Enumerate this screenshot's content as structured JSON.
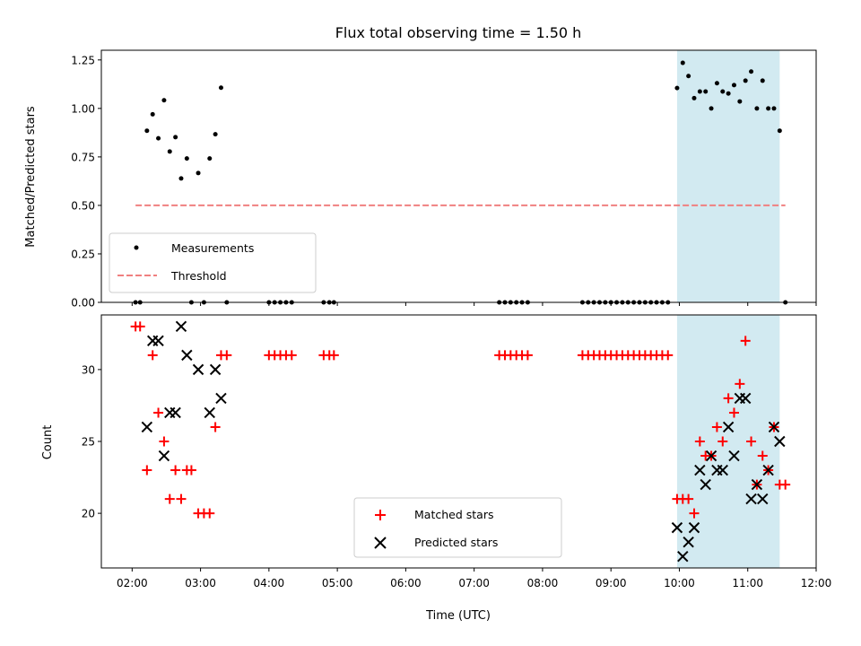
{
  "chart_data": {
    "title": "Flux total observing time = 1.50 h",
    "xlabel": "Time (UTC)",
    "x_ticks": [
      "02:00",
      "03:00",
      "04:00",
      "05:00",
      "06:00",
      "07:00",
      "08:00",
      "09:00",
      "10:00",
      "11:00",
      "12:00"
    ],
    "xlim": [
      "01:33",
      "12:00"
    ],
    "highlight_span": {
      "start": "09:58",
      "end": "11:28",
      "color": "#add8e6"
    },
    "panels": [
      {
        "type": "scatter",
        "ylabel": "Matched/Predicted stars",
        "ylim": [
          0,
          1.3
        ],
        "y_ticks": [
          "0.00",
          "0.25",
          "0.50",
          "0.75",
          "1.00",
          "1.25"
        ],
        "legend_position": "lower-left",
        "series": [
          {
            "name": "Measurements",
            "marker": "dot",
            "color": "#000000",
            "points": [
              [
                "02:03",
                0.0
              ],
              [
                "02:07",
                0.0
              ],
              [
                "02:13",
                0.885
              ],
              [
                "02:18",
                0.97
              ],
              [
                "02:23",
                0.846
              ],
              [
                "02:28",
                1.042
              ],
              [
                "02:33",
                0.778
              ],
              [
                "02:38",
                0.852
              ],
              [
                "02:43",
                0.639
              ],
              [
                "02:48",
                0.742
              ],
              [
                "02:52",
                0.0
              ],
              [
                "02:58",
                0.667
              ],
              [
                "03:03",
                0.0
              ],
              [
                "03:08",
                0.742
              ],
              [
                "03:13",
                0.867
              ],
              [
                "03:18",
                1.107
              ],
              [
                "03:23",
                0.0
              ],
              [
                "04:00",
                0.0
              ],
              [
                "04:05",
                0.0
              ],
              [
                "04:10",
                0.0
              ],
              [
                "04:15",
                0.0
              ],
              [
                "04:20",
                0.0
              ],
              [
                "04:48",
                0.0
              ],
              [
                "04:53",
                0.0
              ],
              [
                "04:57",
                0.0
              ],
              [
                "07:22",
                0.0
              ],
              [
                "07:27",
                0.0
              ],
              [
                "07:32",
                0.0
              ],
              [
                "07:37",
                0.0
              ],
              [
                "07:42",
                0.0
              ],
              [
                "07:47",
                0.0
              ],
              [
                "08:35",
                0.0
              ],
              [
                "08:40",
                0.0
              ],
              [
                "08:45",
                0.0
              ],
              [
                "08:50",
                0.0
              ],
              [
                "08:55",
                0.0
              ],
              [
                "09:00",
                0.0
              ],
              [
                "09:05",
                0.0
              ],
              [
                "09:10",
                0.0
              ],
              [
                "09:15",
                0.0
              ],
              [
                "09:20",
                0.0
              ],
              [
                "09:25",
                0.0
              ],
              [
                "09:30",
                0.0
              ],
              [
                "09:35",
                0.0
              ],
              [
                "09:40",
                0.0
              ],
              [
                "09:45",
                0.0
              ],
              [
                "09:50",
                0.0
              ],
              [
                "09:58",
                1.105
              ],
              [
                "10:03",
                1.235
              ],
              [
                "10:08",
                1.167
              ],
              [
                "10:13",
                1.053
              ],
              [
                "10:18",
                1.087
              ],
              [
                "10:23",
                1.087
              ],
              [
                "10:28",
                1.0
              ],
              [
                "10:33",
                1.13
              ],
              [
                "10:38",
                1.087
              ],
              [
                "10:43",
                1.077
              ],
              [
                "10:48",
                1.12
              ],
              [
                "10:53",
                1.036
              ],
              [
                "10:58",
                1.143
              ],
              [
                "11:03",
                1.19
              ],
              [
                "11:08",
                1.0
              ],
              [
                "11:13",
                1.143
              ],
              [
                "11:18",
                1.0
              ],
              [
                "11:23",
                1.0
              ],
              [
                "11:28",
                0.885
              ],
              [
                "11:33",
                0.0
              ]
            ]
          },
          {
            "name": "Threshold",
            "marker": "dashed-line",
            "color": "#f08080",
            "points": [
              [
                "02:03",
                0.5
              ],
              [
                "11:33",
                0.5
              ]
            ]
          }
        ]
      },
      {
        "type": "scatter",
        "ylabel": "Count",
        "ylim": [
          16.2,
          33.8
        ],
        "y_ticks": [
          "20",
          "25",
          "30"
        ],
        "legend_position": "lower-center",
        "series": [
          {
            "name": "Matched stars",
            "marker": "plus",
            "color": "#ff0000",
            "points": [
              [
                "02:03",
                33
              ],
              [
                "02:07",
                33
              ],
              [
                "02:13",
                23
              ],
              [
                "02:18",
                31
              ],
              [
                "02:23",
                27
              ],
              [
                "02:28",
                25
              ],
              [
                "02:33",
                21
              ],
              [
                "02:38",
                23
              ],
              [
                "02:43",
                21
              ],
              [
                "02:48",
                23
              ],
              [
                "02:52",
                23
              ],
              [
                "02:58",
                20
              ],
              [
                "03:03",
                20
              ],
              [
                "03:08",
                20
              ],
              [
                "03:13",
                26
              ],
              [
                "03:18",
                31
              ],
              [
                "03:23",
                31
              ],
              [
                "04:00",
                31
              ],
              [
                "04:05",
                31
              ],
              [
                "04:10",
                31
              ],
              [
                "04:15",
                31
              ],
              [
                "04:20",
                31
              ],
              [
                "04:48",
                31
              ],
              [
                "04:53",
                31
              ],
              [
                "04:57",
                31
              ],
              [
                "07:22",
                31
              ],
              [
                "07:27",
                31
              ],
              [
                "07:32",
                31
              ],
              [
                "07:37",
                31
              ],
              [
                "07:42",
                31
              ],
              [
                "07:47",
                31
              ],
              [
                "08:35",
                31
              ],
              [
                "08:40",
                31
              ],
              [
                "08:45",
                31
              ],
              [
                "08:50",
                31
              ],
              [
                "08:55",
                31
              ],
              [
                "09:00",
                31
              ],
              [
                "09:05",
                31
              ],
              [
                "09:10",
                31
              ],
              [
                "09:15",
                31
              ],
              [
                "09:20",
                31
              ],
              [
                "09:25",
                31
              ],
              [
                "09:30",
                31
              ],
              [
                "09:35",
                31
              ],
              [
                "09:40",
                31
              ],
              [
                "09:45",
                31
              ],
              [
                "09:50",
                31
              ],
              [
                "09:58",
                21
              ],
              [
                "10:03",
                21
              ],
              [
                "10:08",
                21
              ],
              [
                "10:13",
                20
              ],
              [
                "10:18",
                25
              ],
              [
                "10:23",
                24
              ],
              [
                "10:28",
                24
              ],
              [
                "10:33",
                26
              ],
              [
                "10:38",
                25
              ],
              [
                "10:43",
                28
              ],
              [
                "10:48",
                27
              ],
              [
                "10:53",
                29
              ],
              [
                "10:58",
                32
              ],
              [
                "11:03",
                25
              ],
              [
                "11:08",
                22
              ],
              [
                "11:13",
                24
              ],
              [
                "11:18",
                23
              ],
              [
                "11:23",
                26
              ],
              [
                "11:28",
                22
              ],
              [
                "11:33",
                22
              ]
            ]
          },
          {
            "name": "Predicted stars",
            "marker": "cross",
            "color": "#000000",
            "points": [
              [
                "02:13",
                26
              ],
              [
                "02:18",
                32
              ],
              [
                "02:23",
                32
              ],
              [
                "02:28",
                24
              ],
              [
                "02:33",
                27
              ],
              [
                "02:38",
                27
              ],
              [
                "02:43",
                33
              ],
              [
                "02:48",
                31
              ],
              [
                "02:58",
                30
              ],
              [
                "03:08",
                27
              ],
              [
                "03:13",
                30
              ],
              [
                "03:18",
                28
              ],
              [
                "09:58",
                19
              ],
              [
                "10:03",
                17
              ],
              [
                "10:08",
                18
              ],
              [
                "10:13",
                19
              ],
              [
                "10:18",
                23
              ],
              [
                "10:23",
                22
              ],
              [
                "10:28",
                24
              ],
              [
                "10:33",
                23
              ],
              [
                "10:38",
                23
              ],
              [
                "10:43",
                26
              ],
              [
                "10:48",
                24
              ],
              [
                "10:53",
                28
              ],
              [
                "10:58",
                28
              ],
              [
                "11:03",
                21
              ],
              [
                "11:08",
                22
              ],
              [
                "11:13",
                21
              ],
              [
                "11:18",
                23
              ],
              [
                "11:23",
                26
              ],
              [
                "11:28",
                25
              ]
            ]
          }
        ]
      }
    ]
  }
}
